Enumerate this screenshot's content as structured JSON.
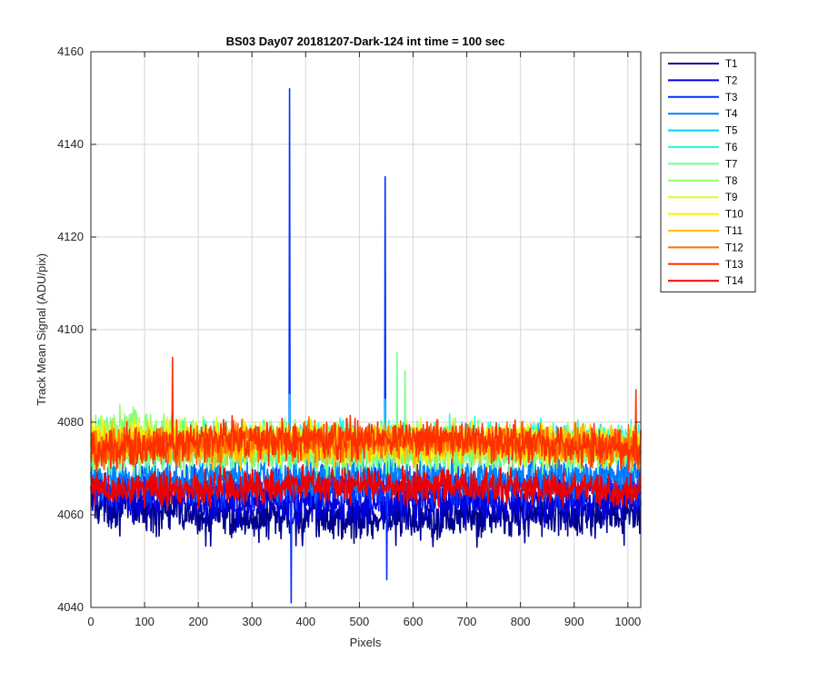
{
  "chart_data": {
    "type": "line",
    "title": "BS03 Day07 20181207-Dark-124 int time = 100 sec",
    "xlabel": "Pixels",
    "ylabel": "Track Mean Signal (ADU/pix)",
    "xlim": [
      0,
      1024
    ],
    "ylim": [
      4040,
      4160
    ],
    "xticks": [
      0,
      100,
      200,
      300,
      400,
      500,
      600,
      700,
      800,
      900,
      1000
    ],
    "yticks": [
      4040,
      4060,
      4080,
      4100,
      4120,
      4140,
      4160
    ],
    "grid": true,
    "legend_position": "outside-right-top",
    "series": [
      {
        "name": "T1",
        "color": "#00008F",
        "base": 4060,
        "noise": 2.5,
        "profile": [
          [
            0,
            4063
          ],
          [
            150,
            4060.5
          ],
          [
            350,
            4059
          ],
          [
            600,
            4059.5
          ],
          [
            900,
            4060
          ],
          [
            1024,
            4060
          ]
        ],
        "spikes": []
      },
      {
        "name": "T2",
        "color": "#0000DF",
        "base": 4063,
        "noise": 2.2,
        "profile": [
          [
            0,
            4065
          ],
          [
            300,
            4062.5
          ],
          [
            700,
            4063
          ],
          [
            1024,
            4063
          ]
        ],
        "spikes": []
      },
      {
        "name": "T3",
        "color": "#0030FF",
        "base": 4066,
        "noise": 2.2,
        "profile": [
          [
            0,
            4066
          ],
          [
            1024,
            4066
          ]
        ],
        "spikes": [
          {
            "x": 370,
            "y": 4152
          },
          {
            "x": 373,
            "y": 4041
          },
          {
            "x": 548,
            "y": 4133
          },
          {
            "x": 551,
            "y": 4046
          }
        ]
      },
      {
        "name": "T4",
        "color": "#0080FF",
        "base": 4068,
        "noise": 2.2,
        "profile": [
          [
            0,
            4068
          ],
          [
            1024,
            4068
          ]
        ],
        "spikes": []
      },
      {
        "name": "T5",
        "color": "#00CFFF",
        "base": 4075,
        "noise": 2.0,
        "profile": [
          [
            0,
            4075
          ],
          [
            1024,
            4075
          ]
        ],
        "spikes": [
          {
            "x": 370,
            "y": 4086
          },
          {
            "x": 548,
            "y": 4085
          }
        ]
      },
      {
        "name": "T6",
        "color": "#20FFDF",
        "base": 4076,
        "noise": 2.0,
        "profile": [
          [
            0,
            4076
          ],
          [
            1024,
            4076
          ]
        ],
        "spikes": []
      },
      {
        "name": "T7",
        "color": "#70FF8F",
        "base": 4073,
        "noise": 2.0,
        "profile": [
          [
            0,
            4073
          ],
          [
            1024,
            4073
          ]
        ],
        "spikes": [
          {
            "x": 570,
            "y": 4095
          },
          {
            "x": 585,
            "y": 4091
          }
        ]
      },
      {
        "name": "T8",
        "color": "#8FFF70",
        "base": 4077,
        "noise": 2.0,
        "profile": [
          [
            0,
            4076
          ],
          [
            80,
            4080
          ],
          [
            130,
            4078
          ],
          [
            200,
            4076
          ],
          [
            1024,
            4075
          ]
        ],
        "spikes": []
      },
      {
        "name": "T9",
        "color": "#DFFF20",
        "base": 4076,
        "noise": 2.0,
        "profile": [
          [
            0,
            4076
          ],
          [
            1024,
            4075
          ]
        ],
        "spikes": []
      },
      {
        "name": "T10",
        "color": "#FFEF00",
        "base": 4077,
        "noise": 2.0,
        "profile": [
          [
            0,
            4076
          ],
          [
            1024,
            4075
          ]
        ],
        "spikes": []
      },
      {
        "name": "T11",
        "color": "#FFBF00",
        "base": 4075,
        "noise": 2.0,
        "profile": [
          [
            0,
            4075
          ],
          [
            1024,
            4075
          ]
        ],
        "spikes": []
      },
      {
        "name": "T12",
        "color": "#FF7000",
        "base": 4076,
        "noise": 2.0,
        "profile": [
          [
            0,
            4074
          ],
          [
            300,
            4076
          ],
          [
            700,
            4076
          ],
          [
            1024,
            4074
          ]
        ],
        "spikes": []
      },
      {
        "name": "T13",
        "color": "#FF3000",
        "base": 4075,
        "noise": 2.0,
        "profile": [
          [
            0,
            4074
          ],
          [
            250,
            4076
          ],
          [
            650,
            4076.5
          ],
          [
            1024,
            4074
          ]
        ],
        "spikes": [
          {
            "x": 152,
            "y": 4094
          },
          {
            "x": 1015,
            "y": 4087
          }
        ]
      },
      {
        "name": "T14",
        "color": "#EF0000",
        "base": 4066,
        "noise": 1.8,
        "profile": [
          [
            0,
            4065.5
          ],
          [
            500,
            4066.5
          ],
          [
            1024,
            4065.5
          ]
        ],
        "spikes": []
      }
    ]
  }
}
